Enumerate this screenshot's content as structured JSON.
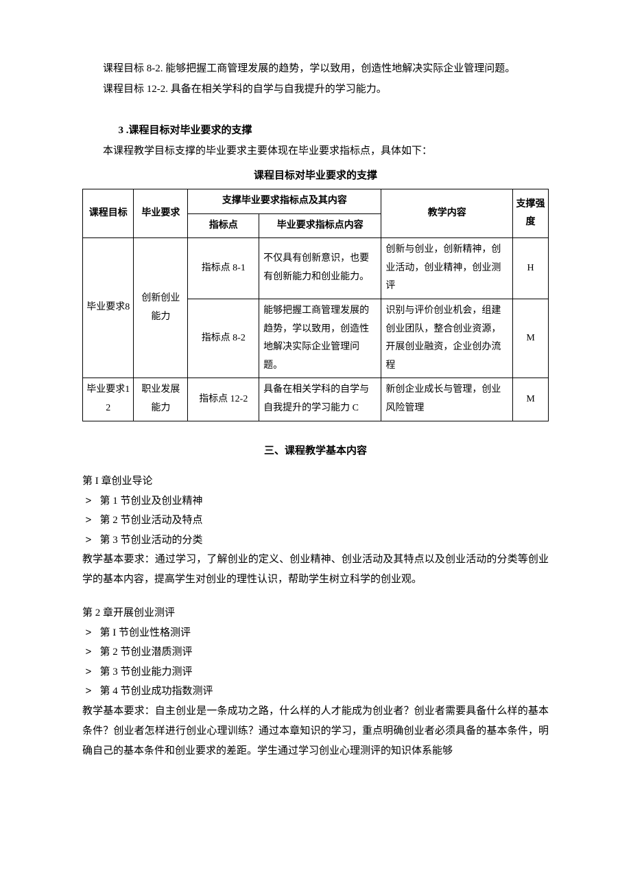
{
  "objectives": {
    "obj_8_2_label": "课程目标 8-2.",
    "obj_8_2_text": "能够把握工商管理发展的趋势，学以致用，创造性地解决实际企业管理问题。",
    "obj_12_2_label": "课程目标 12-2.",
    "obj_12_2_text": "具备在相关学科的自学与自我提升的学习能力。"
  },
  "section3": {
    "heading": "3 .课程目标对毕业要求的支撑",
    "intro": "本课程教学目标支撑的毕业要求主要体现在毕业要求指标点，具体如下：",
    "table_caption": "课程目标对毕业要求的支撑"
  },
  "table": {
    "colwidths": [
      "66px",
      "70px",
      "92px",
      "158px",
      "170px",
      "46px"
    ],
    "header": {
      "c1": "课程目标",
      "c2": "毕业要求",
      "c3_merged": "支撑毕业要求指标点及其内容",
      "c3a": "指标点",
      "c3b": "毕业要求指标点内容",
      "c5": "教学内容",
      "c6": "支撑强度"
    },
    "rows": [
      {
        "goal": "毕业要求8",
        "req": "创新创业能力",
        "point": "指标点 8-1",
        "content": "不仅具有创新意识，也要有创新能力和创业能力。",
        "teach": "创新与创业，创新精神，创业活动，创业精神，创业测评",
        "strength": "H"
      },
      {
        "point": "指标点 8-2",
        "content": "能够把握工商管理发展的趋势，学以致用，创造性地解决实际企业管理问题。",
        "teach": "识别与评价创业机会，组建创业团队，整合创业资源，开展创业融资，企业创办流程",
        "strength": "M"
      },
      {
        "goal": "毕业要求12",
        "req": "职业发展能力",
        "point": "指标点 12-2",
        "content": "具备在相关学科的自学与自我提升的学习能力 C",
        "teach": "新创企业成长与管理，创业风险管理",
        "strength": "M"
      }
    ]
  },
  "part3": {
    "heading": "三、课程教学基本内容"
  },
  "ch1": {
    "title": "第 I 章创业导论",
    "items": [
      "第 1 节创业及创业精神",
      "第 2 节创业活动及特点",
      "第 3 节创业活动的分类"
    ],
    "req": "教学基本要求：通过学习，了解创业的定义、创业精神、创业活动及其特点以及创业活动的分类等创业学的基本内容，提高学生对创业的理性认识，帮助学生树立科学的创业观。"
  },
  "ch2": {
    "title": "第 2 章开展创业测评",
    "items": [
      "第 I 节创业性格测评",
      "第 2 节创业潜质测评",
      "第 3 节创业能力测评",
      "第 4 节创业成功指数测评"
    ],
    "req": "教学基本要求：自主创业是一条成功之路，什么样的人才能成为创业者？创业者需要具备什么样的基本条件？创业者怎样进行创业心理训练？通过本章知识的学习，重点明确创业者必须具备的基本条件，明确自己的基本条件和创业要求的差距。学生通过学习创业心理测评的知识体系能够"
  },
  "bullet_glyph": ">"
}
